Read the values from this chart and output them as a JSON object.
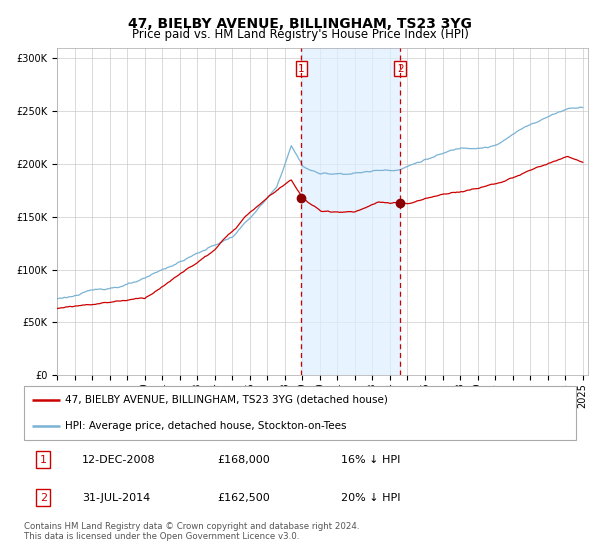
{
  "title": "47, BIELBY AVENUE, BILLINGHAM, TS23 3YG",
  "subtitle": "Price paid vs. HM Land Registry's House Price Index (HPI)",
  "ylim": [
    0,
    310000
  ],
  "yticks": [
    0,
    50000,
    100000,
    150000,
    200000,
    250000,
    300000
  ],
  "ytick_labels": [
    "£0",
    "£50K",
    "£100K",
    "£150K",
    "£200K",
    "£250K",
    "£300K"
  ],
  "hpi_color": "#7ab3d4",
  "price_color": "#cc0000",
  "marker_color": "#8b0000",
  "vline_color": "#cc0000",
  "shade_color": "#ddeeff",
  "grid_color": "#cccccc",
  "sale1_x": 2008.95,
  "sale1_price": 168000,
  "sale2_x": 2014.58,
  "sale2_price": 162500,
  "legend_label_price": "47, BIELBY AVENUE, BILLINGHAM, TS23 3YG (detached house)",
  "legend_label_hpi": "HPI: Average price, detached house, Stockton-on-Tees",
  "table_row1": [
    "1",
    "12-DEC-2008",
    "£168,000",
    "16% ↓ HPI"
  ],
  "table_row2": [
    "2",
    "31-JUL-2014",
    "£162,500",
    "20% ↓ HPI"
  ],
  "footnote": "Contains HM Land Registry data © Crown copyright and database right 2024.\nThis data is licensed under the Open Government Licence v3.0.",
  "title_fontsize": 10,
  "subtitle_fontsize": 8.5,
  "tick_fontsize": 7
}
